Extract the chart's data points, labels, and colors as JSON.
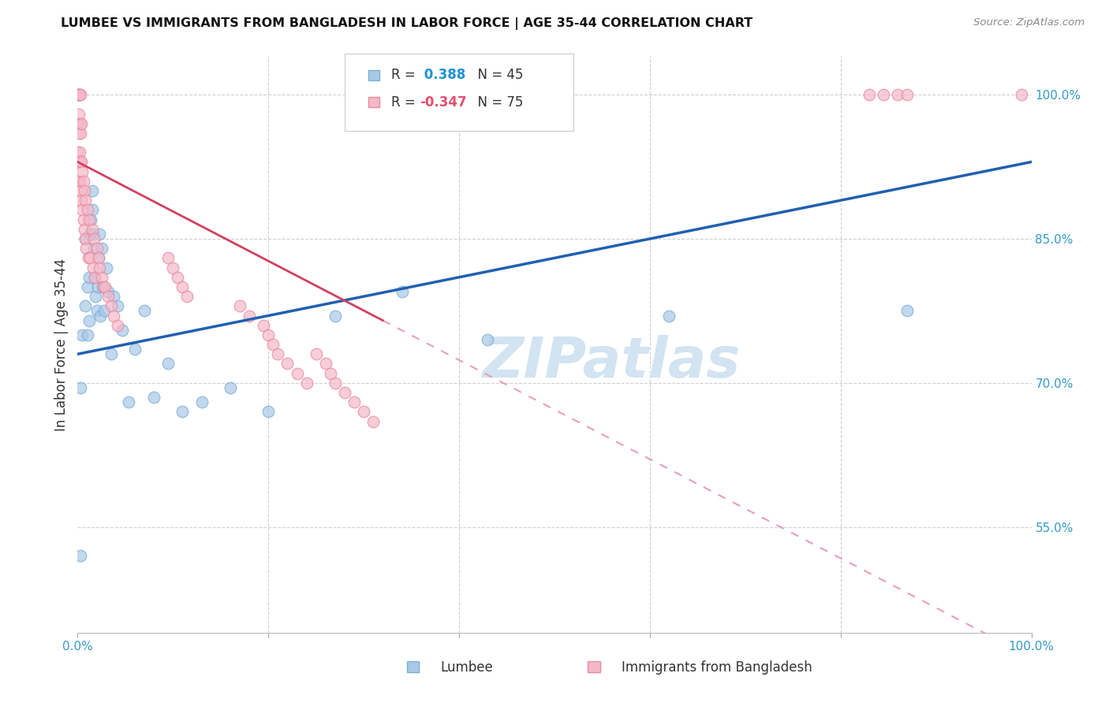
{
  "title": "LUMBEE VS IMMIGRANTS FROM BANGLADESH IN LABOR FORCE | AGE 35-44 CORRELATION CHART",
  "source": "Source: ZipAtlas.com",
  "ylabel": "In Labor Force | Age 35-44",
  "xlim": [
    0.0,
    1.0
  ],
  "ylim": [
    0.44,
    1.04
  ],
  "y_tick_positions_right": [
    1.0,
    0.85,
    0.7,
    0.55
  ],
  "y_tick_labels_right": [
    "100.0%",
    "85.0%",
    "70.0%",
    "55.0%"
  ],
  "gridline_color": "#d0d0d0",
  "background_color": "#ffffff",
  "lumbee_color": "#a8c8e8",
  "lumbee_edge_color": "#7aafd4",
  "bangladesh_color": "#f5b8c8",
  "bangladesh_edge_color": "#e88aa0",
  "lumbee_r": 0.388,
  "lumbee_n": 45,
  "bangladesh_r": -0.347,
  "bangladesh_n": 75,
  "lumbee_line_color": "#2060b0",
  "bangladesh_line_solid_color": "#d04060",
  "bangladesh_line_dashed_color": "#e8a0b0",
  "lumbee_scatter_x": [
    0.003,
    0.003,
    0.005,
    0.008,
    0.008,
    0.01,
    0.01,
    0.012,
    0.012,
    0.013,
    0.014,
    0.015,
    0.015,
    0.016,
    0.017,
    0.018,
    0.019,
    0.02,
    0.021,
    0.022,
    0.023,
    0.024,
    0.025,
    0.026,
    0.028,
    0.03,
    0.032,
    0.035,
    0.038,
    0.042,
    0.047,
    0.053,
    0.06,
    0.07,
    0.08,
    0.095,
    0.11,
    0.13,
    0.16,
    0.2,
    0.27,
    0.34,
    0.43,
    0.62,
    0.87
  ],
  "lumbee_scatter_y": [
    0.52,
    0.695,
    0.75,
    0.78,
    0.85,
    0.75,
    0.8,
    0.765,
    0.81,
    0.855,
    0.87,
    0.9,
    0.88,
    0.855,
    0.84,
    0.81,
    0.79,
    0.775,
    0.8,
    0.83,
    0.855,
    0.77,
    0.84,
    0.8,
    0.775,
    0.82,
    0.795,
    0.73,
    0.79,
    0.78,
    0.755,
    0.68,
    0.735,
    0.775,
    0.685,
    0.72,
    0.67,
    0.68,
    0.695,
    0.67,
    0.77,
    0.795,
    0.745,
    0.77,
    0.775
  ],
  "bangladesh_scatter_x": [
    0.0,
    0.0,
    0.0,
    0.0,
    0.0,
    0.001,
    0.001,
    0.001,
    0.001,
    0.001,
    0.002,
    0.002,
    0.002,
    0.002,
    0.003,
    0.003,
    0.003,
    0.003,
    0.004,
    0.004,
    0.004,
    0.005,
    0.005,
    0.006,
    0.006,
    0.007,
    0.007,
    0.008,
    0.008,
    0.009,
    0.01,
    0.011,
    0.012,
    0.013,
    0.015,
    0.016,
    0.017,
    0.018,
    0.02,
    0.022,
    0.023,
    0.025,
    0.027,
    0.029,
    0.032,
    0.035,
    0.038,
    0.042,
    0.095,
    0.1,
    0.105,
    0.11,
    0.115,
    0.17,
    0.18,
    0.195,
    0.2,
    0.205,
    0.21,
    0.22,
    0.23,
    0.24,
    0.25,
    0.26,
    0.265,
    0.27,
    0.28,
    0.29,
    0.3,
    0.31,
    0.83,
    0.845,
    0.86,
    0.87,
    0.99
  ],
  "bangladesh_scatter_y": [
    0.91,
    0.94,
    0.97,
    1.0,
    1.0,
    0.93,
    0.96,
    0.98,
    1.0,
    1.0,
    0.91,
    0.94,
    0.97,
    1.0,
    0.9,
    0.93,
    0.96,
    1.0,
    0.89,
    0.93,
    0.97,
    0.88,
    0.92,
    0.87,
    0.91,
    0.86,
    0.9,
    0.85,
    0.89,
    0.84,
    0.88,
    0.83,
    0.87,
    0.83,
    0.86,
    0.82,
    0.85,
    0.81,
    0.84,
    0.83,
    0.82,
    0.81,
    0.8,
    0.8,
    0.79,
    0.78,
    0.77,
    0.76,
    0.83,
    0.82,
    0.81,
    0.8,
    0.79,
    0.78,
    0.77,
    0.76,
    0.75,
    0.74,
    0.73,
    0.72,
    0.71,
    0.7,
    0.73,
    0.72,
    0.71,
    0.7,
    0.69,
    0.68,
    0.67,
    0.66,
    1.0,
    1.0,
    1.0,
    1.0,
    1.0
  ]
}
